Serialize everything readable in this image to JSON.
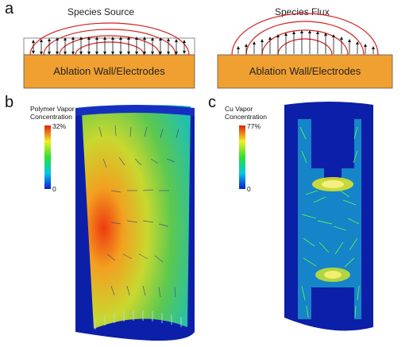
{
  "panels": {
    "a": {
      "letter": "a",
      "left_title": "Species Source",
      "right_title": "Species Flux",
      "left_bar": "Ablation Wall/Electrodes",
      "right_bar": "Ablation Wall/Electrodes"
    },
    "b": {
      "letter": "b",
      "colorbar_title": "Polymer Vapor\nConcentration",
      "max_label": "32%",
      "min_label": "0"
    },
    "c": {
      "letter": "c",
      "colorbar_title": "Cu Vapor\nConcentration",
      "max_label": "77%",
      "min_label": "0"
    }
  },
  "colors": {
    "ablation_bar": "#F0A030",
    "arc_red": "#D62020",
    "cylinder_blue": "#0B1FA8"
  }
}
